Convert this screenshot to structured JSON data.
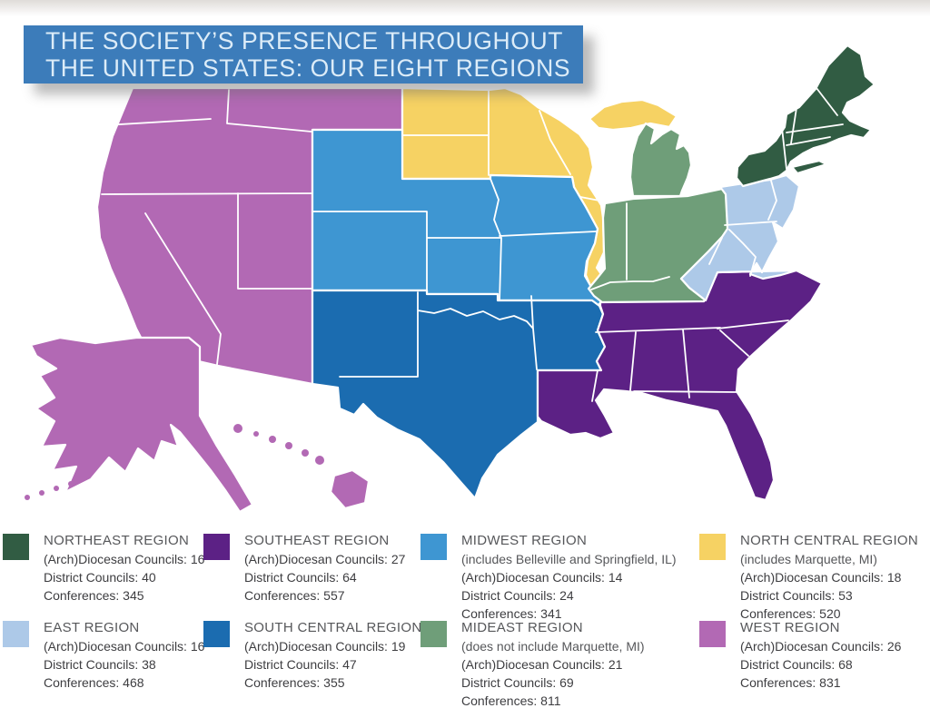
{
  "banner": {
    "color": "#3c7cba",
    "text_color": "#dcecf8",
    "line1": "THE SOCIETY’S PRESENCE THROUGHOUT",
    "line2": "THE UNITED STATES: OUR EIGHT REGIONS"
  },
  "legend": {
    "stat_labels": {
      "diocesan": "(Arch)Diocesan Councils",
      "district": "District Councils",
      "conferences": "Conferences"
    }
  },
  "regions": [
    {
      "id": "northeast",
      "name": "NORTHEAST REGION",
      "color": "#315c43",
      "note": "",
      "diocesan_councils": 16,
      "district_councils": 40,
      "conferences": 345
    },
    {
      "id": "southeast",
      "name": "SOUTHEAST REGION",
      "color": "#5c2185",
      "note": "",
      "diocesan_councils": 27,
      "district_councils": 64,
      "conferences": 557
    },
    {
      "id": "midwest",
      "name": "MIDWEST REGION",
      "color": "#3e96d2",
      "note": "(includes Belleville and Springfield, IL)",
      "diocesan_councils": 14,
      "district_councils": 24,
      "conferences": 341
    },
    {
      "id": "north_central",
      "name": "NORTH CENTRAL REGION",
      "color": "#f6d263",
      "note": "(includes Marquette, MI)",
      "diocesan_councils": 18,
      "district_councils": 53,
      "conferences": 520
    },
    {
      "id": "east",
      "name": "EAST REGION",
      "color": "#adc9e8",
      "note": "",
      "diocesan_councils": 16,
      "district_councils": 38,
      "conferences": 468
    },
    {
      "id": "south_central",
      "name": "SOUTH CENTRAL REGION",
      "color": "#1b6cb0",
      "note": "",
      "diocesan_councils": 19,
      "district_councils": 47,
      "conferences": 355
    },
    {
      "id": "mideast",
      "name": "MIDEAST REGION",
      "color": "#6f9e79",
      "note": "(does not include Marquette, MI)",
      "diocesan_councils": 21,
      "district_councils": 69,
      "conferences": 811
    },
    {
      "id": "west",
      "name": "WEST REGION",
      "color": "#b269b4",
      "note": "",
      "diocesan_councils": 26,
      "district_councils": 68,
      "conferences": 831
    }
  ],
  "map": {
    "stroke_color": "#ffffff"
  }
}
